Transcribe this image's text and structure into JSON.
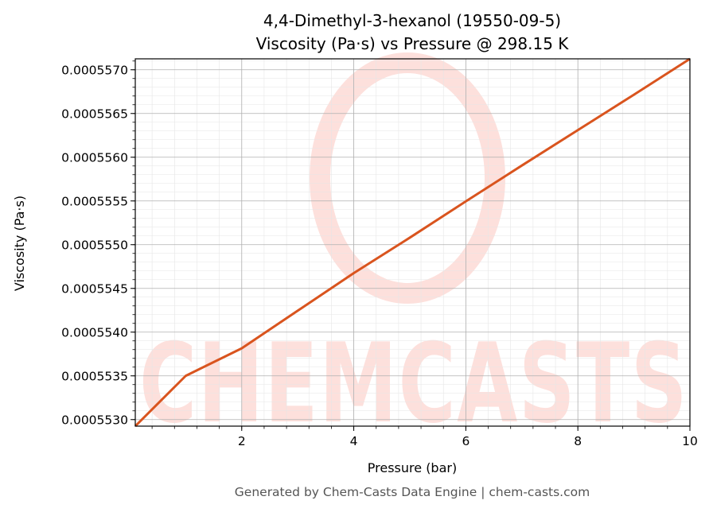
{
  "chart_data": {
    "type": "line",
    "title_line1": "4,4-Dimethyl-3-hexanol (19550-09-5)",
    "title_line2": "Viscosity (Pa·s) vs Pressure @ 298.15 K",
    "xlabel": "Pressure (bar)",
    "ylabel": "Viscosity (Pa·s)",
    "xlim": [
      0.1,
      10
    ],
    "ylim": [
      0.000552925,
      0.000557125
    ],
    "x_ticks": [
      2,
      4,
      6,
      8,
      10
    ],
    "x_tick_labels": [
      "2",
      "4",
      "6",
      "8",
      "10"
    ],
    "y_ticks": [
      0.000553,
      0.0005535,
      0.000554,
      0.0005545,
      0.000555,
      0.0005555,
      0.000556,
      0.0005565,
      0.000557
    ],
    "y_tick_labels": [
      "0.0005530",
      "0.0005535",
      "0.0005540",
      "0.0005545",
      "0.0005550",
      "0.0005555",
      "0.0005560",
      "0.0005565",
      "0.0005570"
    ],
    "grid": true,
    "series": [
      {
        "color": "#d9541e",
        "x": [
          0.1,
          1,
          2,
          3,
          4,
          5,
          6,
          7,
          8,
          9,
          10
        ],
        "y": [
          0.000552925,
          0.0005535,
          0.000553815,
          0.000554245,
          0.000554675,
          0.00055508,
          0.000555495,
          0.000555905,
          0.00055631,
          0.000556715,
          0.000557125
        ]
      }
    ]
  },
  "watermark": {
    "text": "CHEMCASTS",
    "color": "#fde0dc"
  },
  "footer": "Generated by Chem-Casts Data Engine | chem-casts.com"
}
